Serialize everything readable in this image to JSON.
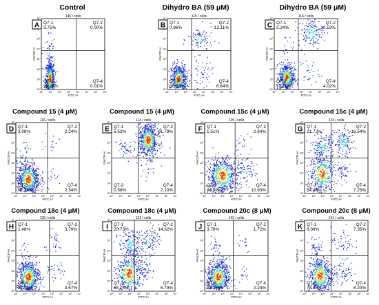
{
  "chart_data": [
    {
      "type": "scatter",
      "panel": "A",
      "title": "Control",
      "cells": "145 / cells",
      "xlabel": "FITC-H",
      "ylabel": "PerCP-H",
      "quadrant_labels": [
        "Q7-1",
        "Q7-2",
        "Q7-3",
        "Q7-4"
      ],
      "Q7-1": "3.75%",
      "Q7-2": "0.00%",
      "Q7-3": "96.24%",
      "Q7-4": "0.01%"
    },
    {
      "type": "scatter",
      "panel": "B",
      "title": "Dihydro BA (59 μM)",
      "cells": "115 / cells",
      "xlabel": "FITC-H",
      "ylabel": "PerCP-H",
      "quadrant_labels": [
        "Q7-1",
        "Q7-2",
        "Q7-3",
        "Q7-4"
      ],
      "Q7-1": "0.96%",
      "Q7-2": "12.11%",
      "Q7-3": "80.09%",
      "Q7-4": "6.84%"
    },
    {
      "type": "scatter",
      "panel": "C",
      "title": "Dihydro BA (59 μM)",
      "cells": "116 / cells",
      "xlabel": "FITC-H",
      "ylabel": "PerCP-H",
      "quadrant_labels": [
        "Q7-1",
        "Q7-2",
        "Q7-3",
        "Q7-4"
      ],
      "Q7-1": "2.34%",
      "Q7-2": "20.53%",
      "Q7-3": "73.11%",
      "Q7-4": "4.02%"
    },
    {
      "type": "scatter",
      "panel": "D",
      "title": "Compound 15 (4 μM)",
      "cells": "116 / cells",
      "xlabel": "FITC-H",
      "ylabel": "PerCP-H",
      "quadrant_labels": [
        "Q7-1",
        "Q7-2",
        "Q7-3",
        "Q7-4"
      ],
      "Q7-1": "3.08%",
      "Q7-2": "2.24%",
      "Q7-3": "92.34%",
      "Q7-4": "2.34%"
    },
    {
      "type": "scatter",
      "panel": "E",
      "title": "Compound 15 (4 μM)",
      "cells": "114 / cells",
      "xlabel": "FITC-H",
      "ylabel": "PerCP-H",
      "quadrant_labels": [
        "Q7-1",
        "Q7-2",
        "Q7-3",
        "Q7-4"
      ],
      "Q7-1": "5.53%",
      "Q7-2": "91.79%",
      "Q7-3": "0.58%",
      "Q7-4": "2.10%"
    },
    {
      "type": "scatter",
      "panel": "F",
      "title": "Compound 15c (4 μM)",
      "cells": "125 / cells",
      "xlabel": "FITC-H",
      "ylabel": "PerCP-H",
      "quadrant_labels": [
        "Q7-1",
        "Q7-2",
        "Q7-3",
        "Q7-4"
      ],
      "Q7-1": "1.51%",
      "Q7-2": "2.64%",
      "Q7-3": "84.92%",
      "Q7-4": "10.93%"
    },
    {
      "type": "scatter",
      "panel": "G",
      "title": "Compound 15c (4 μM)",
      "cells": "124 / cells",
      "xlabel": "FITC-H",
      "ylabel": "PerCP-H",
      "quadrant_labels": [
        "Q7-1",
        "Q7-2",
        "Q7-3",
        "Q7-4"
      ],
      "Q7-1": "21.72%",
      "Q7-2": "16.54%",
      "Q7-3": "54.49%",
      "Q7-4": "7.25%"
    },
    {
      "type": "scatter",
      "panel": "H",
      "title": "Compound 18c (4 μM)",
      "cells": "133 / cells",
      "xlabel": "FITC-H",
      "ylabel": "PerCP-H",
      "quadrant_labels": [
        "Q7-1",
        "Q7-2",
        "Q7-3",
        "Q7-4"
      ],
      "Q7-1": "1.48%",
      "Q7-2": "3.70%",
      "Q7-3": "91.14%",
      "Q7-4": "3.67%"
    },
    {
      "type": "scatter",
      "panel": "I",
      "title": "Compound 18c (4 μM)",
      "cells": "131 / cells",
      "xlabel": "FITC-H",
      "ylabel": "PerCP-H",
      "quadrant_labels": [
        "Q7-1",
        "Q7-2",
        "Q7-3",
        "Q7-4"
      ],
      "Q7-1": "20.73%",
      "Q7-2": "14.32%",
      "Q7-3": "58.16%",
      "Q7-4": "6.79%"
    },
    {
      "type": "scatter",
      "panel": "J",
      "title": "Compound 20c (8 μM)",
      "cells": "143 / cells",
      "xlabel": "FITC-H",
      "ylabel": "PerCP-H",
      "quadrant_labels": [
        "Q7-1",
        "Q7-2",
        "Q7-3",
        "Q7-4"
      ],
      "Q7-1": "3.78%",
      "Q7-2": "1.72%",
      "Q7-3": "92.26%",
      "Q7-4": "2.24%"
    },
    {
      "type": "scatter",
      "panel": "K",
      "title": "Compound 20c (8 μM)",
      "cells": "141 / cells",
      "xlabel": "FITC-H",
      "ylabel": "PerCP-H",
      "quadrant_labels": [
        "Q7-1",
        "Q7-2",
        "Q7-3",
        "Q7-4"
      ],
      "Q7-1": "6.09%",
      "Q7-2": "7.35%",
      "Q7-3": "78.36%",
      "Q7-4": "8.20%"
    }
  ],
  "tick_labels": {
    "x": [
      "10⁰",
      "10¹",
      "10²",
      "10³",
      "10⁴",
      "10⁵",
      "10⁶",
      "10⁷"
    ],
    "y": [
      "10⁰",
      "10¹",
      "10²",
      "10³",
      "10⁴",
      "10⁵",
      "10⁶",
      "10⁷"
    ]
  },
  "colors": {
    "low": "#1f2fd8",
    "mid": "#22c8f0",
    "high": "#f4e21a",
    "peak": "#e8321e"
  }
}
